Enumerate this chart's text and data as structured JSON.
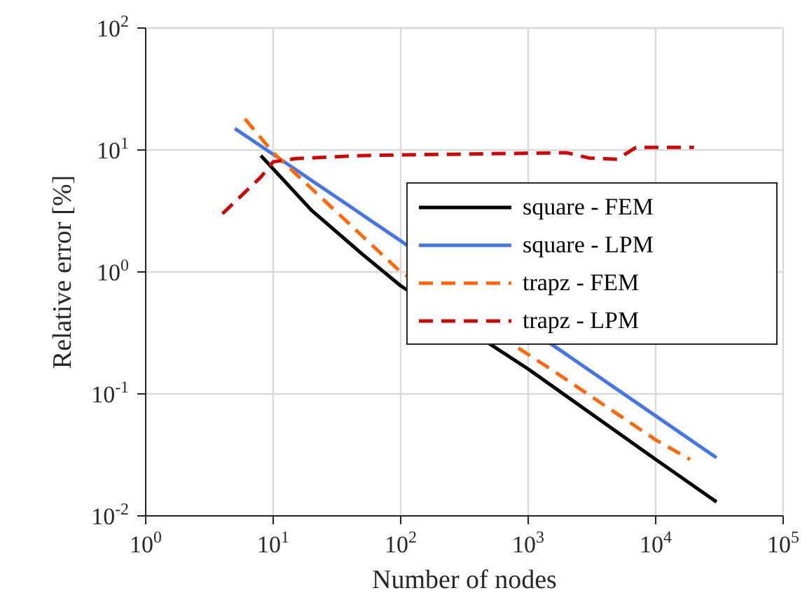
{
  "chart_data": {
    "type": "line",
    "xlabel": "Number of nodes",
    "ylabel": "Relative error  [%]",
    "log": "xy",
    "grid": true,
    "legend": "right",
    "marker": "none",
    "xlim": [
      1,
      100000
    ],
    "ylim": [
      0.01,
      100
    ],
    "xticks": [
      {
        "value": 1,
        "label": "10$^{0}$"
      },
      {
        "value": 10,
        "label": "10$^{1}$"
      },
      {
        "value": 100,
        "label": "10$^{2}$"
      },
      {
        "value": 1000,
        "label": "10$^{3}$"
      },
      {
        "value": 10000,
        "label": "10$^{4}$"
      },
      {
        "value": 100000,
        "label": "10$^{5}$"
      }
    ],
    "yticks": [
      {
        "value": 0.01,
        "label": "10$^{-2}$"
      },
      {
        "value": 0.1,
        "label": "10$^{-1}$"
      },
      {
        "value": 1,
        "label": "10$^{0}$"
      },
      {
        "value": 10,
        "label": "10$^{1}$"
      },
      {
        "value": 100,
        "label": "10$^{2}$"
      }
    ],
    "series": [
      {
        "name": "square - FEM",
        "color": "#000000",
        "line_style": "solid",
        "x": [
          8,
          20,
          50,
          100,
          1000,
          10000,
          30000
        ],
        "values": [
          9,
          3.2,
          1.4,
          0.77,
          0.16,
          0.029,
          0.013
        ]
      },
      {
        "name": "square - LPM",
        "color": "#4876e0",
        "line_style": "solid",
        "x": [
          5,
          10,
          100,
          2000,
          10000,
          30000
        ],
        "values": [
          15,
          9.2,
          1.8,
          0.21,
          0.066,
          0.03
        ]
      },
      {
        "name": "trapz - FEM",
        "color": "#ff6a10",
        "line_style": "dashed",
        "x": [
          6,
          10,
          100,
          1500,
          10000,
          18600
        ],
        "values": [
          18,
          9.5,
          1.0,
          0.16,
          0.042,
          0.029
        ]
      },
      {
        "name": "trapz - LPM",
        "color": "#c80a0a",
        "line_style": "dashed",
        "x": [
          4,
          8,
          10,
          15,
          50,
          200,
          2000,
          3000,
          5000,
          7000,
          20000
        ],
        "values": [
          3,
          6,
          8,
          8.5,
          9,
          9.2,
          9.5,
          8.6,
          8.4,
          10.5,
          10.5
        ]
      }
    ]
  }
}
